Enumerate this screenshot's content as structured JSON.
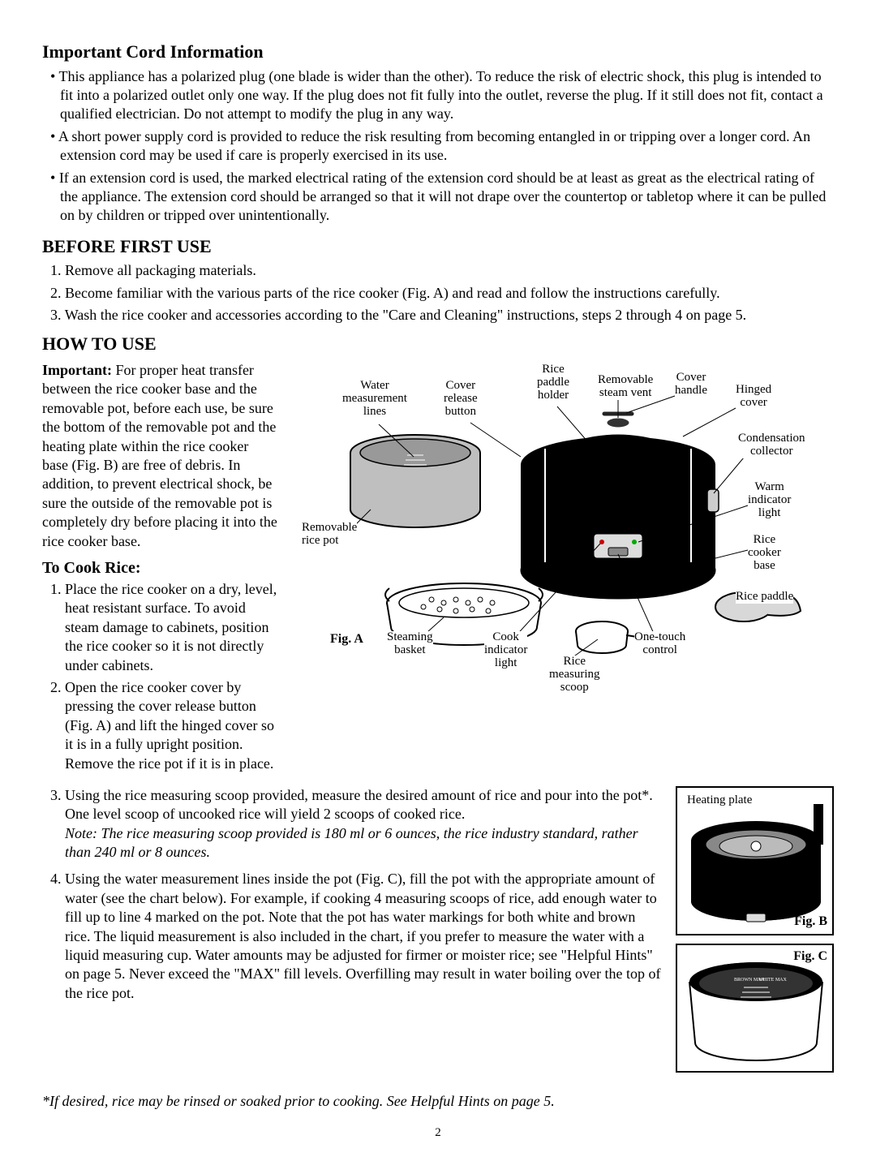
{
  "section1": {
    "title": "Important Cord Information",
    "bullets": [
      "This appliance has a polarized plug (one blade is wider than the other). To reduce the risk of electric shock, this plug is intended to fit into a polarized outlet only one way. If the plug does not fit fully into the outlet, reverse the plug. If it still does not fit, contact a qualified electrician. Do not attempt to modify the plug in any way.",
      "A short power supply cord is provided to reduce the risk resulting from becoming entangled in or tripping over a longer cord. An extension cord may be used if care is properly exercised in its use.",
      "If an extension cord is used, the marked electrical rating of the extension cord should be at least as great as the electrical rating of the appliance. The extension cord should be arranged so that it will not drape over the countertop or tabletop where it can be pulled on by children or tripped over unintentionally."
    ]
  },
  "section2": {
    "title": "BEFORE FIRST USE",
    "items": [
      "Remove all packaging materials.",
      "Become familiar with the various parts of the rice cooker (Fig. A) and read and follow the instructions carefully.",
      "Wash the rice cooker and accessories according to the \"Care and Cleaning\" instructions, steps 2 through 4 on page 5."
    ]
  },
  "section3": {
    "title": "HOW TO USE",
    "important_label": "Important:",
    "important_text": " For proper heat transfer between the rice cooker base and the removable pot, before each use, be sure the bottom of the removable pot and the heating plate within the rice cooker base (Fig. B) are free of debris. In addition, to prevent electrical shock, be sure the outside of the removable pot is completely dry before placing it into the rice cooker base.",
    "subhead": "To Cook Rice:",
    "steps12": [
      "Place the rice cooker on a dry, level, heat resistant surface. To avoid steam damage to cabinets, position the rice cooker so it is not directly under cabinets.",
      "Open the rice cooker cover by pressing the cover release button (Fig. A) and lift the hinged cover so it is in a fully upright position. Remove the rice pot if it is in place."
    ],
    "step3": "Using the rice measuring scoop provided, measure the desired amount of rice and pour into the pot*. One level scoop of uncooked rice will yield 2 scoops of cooked rice.",
    "step3_note": "Note: The rice measuring scoop provided is 180 ml or 6 ounces, the rice industry standard, rather than 240 ml or 8 ounces.",
    "step4": "Using the water measurement lines inside the pot (Fig. C), fill the pot with the appropriate amount of water (see the chart below). For example, if cooking 4 measuring scoops of rice, add enough water to fill up to line 4 marked on the pot. Note that the pot has water markings for both white and brown rice. The liquid measurement is also included in the chart, if you prefer to measure the water with a liquid measuring cup. Water amounts may be adjusted for firmer or moister rice; see \"Helpful Hints\" on page 5. Never exceed the \"MAX\" fill levels. Overfilling may result in water boiling over the top of the rice pot."
  },
  "figA": {
    "caption": "Fig. A",
    "callouts": {
      "water_lines": "Water\nmeasurement\nlines",
      "cover_release": "Cover\nrelease\nbutton",
      "paddle_holder": "Rice\npaddle\nholder",
      "steam_vent": "Removable\nsteam vent",
      "cover_handle": "Cover\nhandle",
      "hinged_cover": "Hinged\ncover",
      "cond_collector": "Condensation\ncollector",
      "warm_light": "Warm\nindicator\nlight",
      "cooker_base": "Rice\ncooker\nbase",
      "rice_paddle": "Rice paddle",
      "removable_pot": "Removable\nrice pot",
      "steaming_basket": "Steaming\nbasket",
      "cook_light": "Cook\nindicator\nlight",
      "measuring_scoop": "Rice\nmeasuring\nscoop",
      "one_touch": "One-touch\ncontrol"
    }
  },
  "figB": {
    "caption": "Fig. B",
    "label": "Heating plate"
  },
  "figC": {
    "caption": "Fig. C"
  },
  "footnote": "*If desired, rice may be rinsed or soaked prior to cooking. See Helpful Hints on page 5.",
  "page_number": "2"
}
